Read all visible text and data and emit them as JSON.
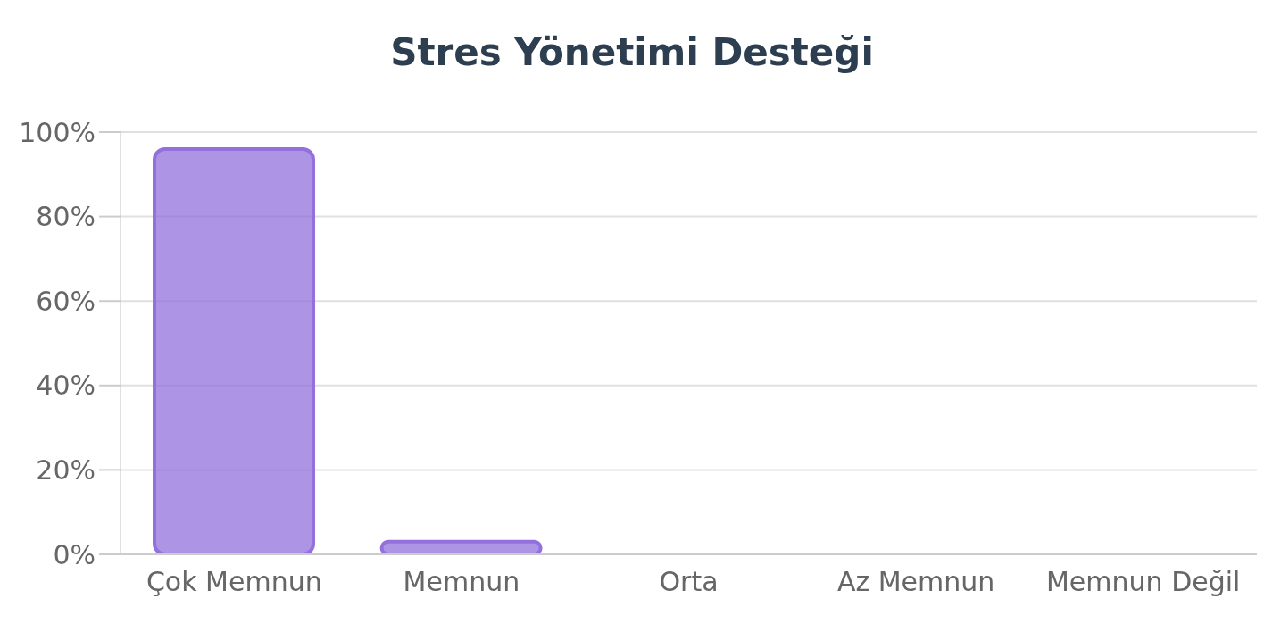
{
  "chart_data": {
    "type": "bar",
    "title": "Stres Yönetimi Desteği",
    "categories": [
      "Çok Memnun",
      "Memnun",
      "Orta",
      "Az Memnun",
      "Memnun Değil"
    ],
    "values": [
      96,
      3,
      0,
      0,
      0
    ],
    "color": "#9370db",
    "ylim": [
      0,
      100
    ],
    "yticks": [
      {
        "value": 0,
        "label": "0%"
      },
      {
        "value": 20,
        "label": "20%"
      },
      {
        "value": 40,
        "label": "40%"
      },
      {
        "value": 60,
        "label": "60%"
      },
      {
        "value": 80,
        "label": "80%"
      },
      {
        "value": 100,
        "label": "100%"
      }
    ],
    "grid": "y",
    "legend": false
  }
}
